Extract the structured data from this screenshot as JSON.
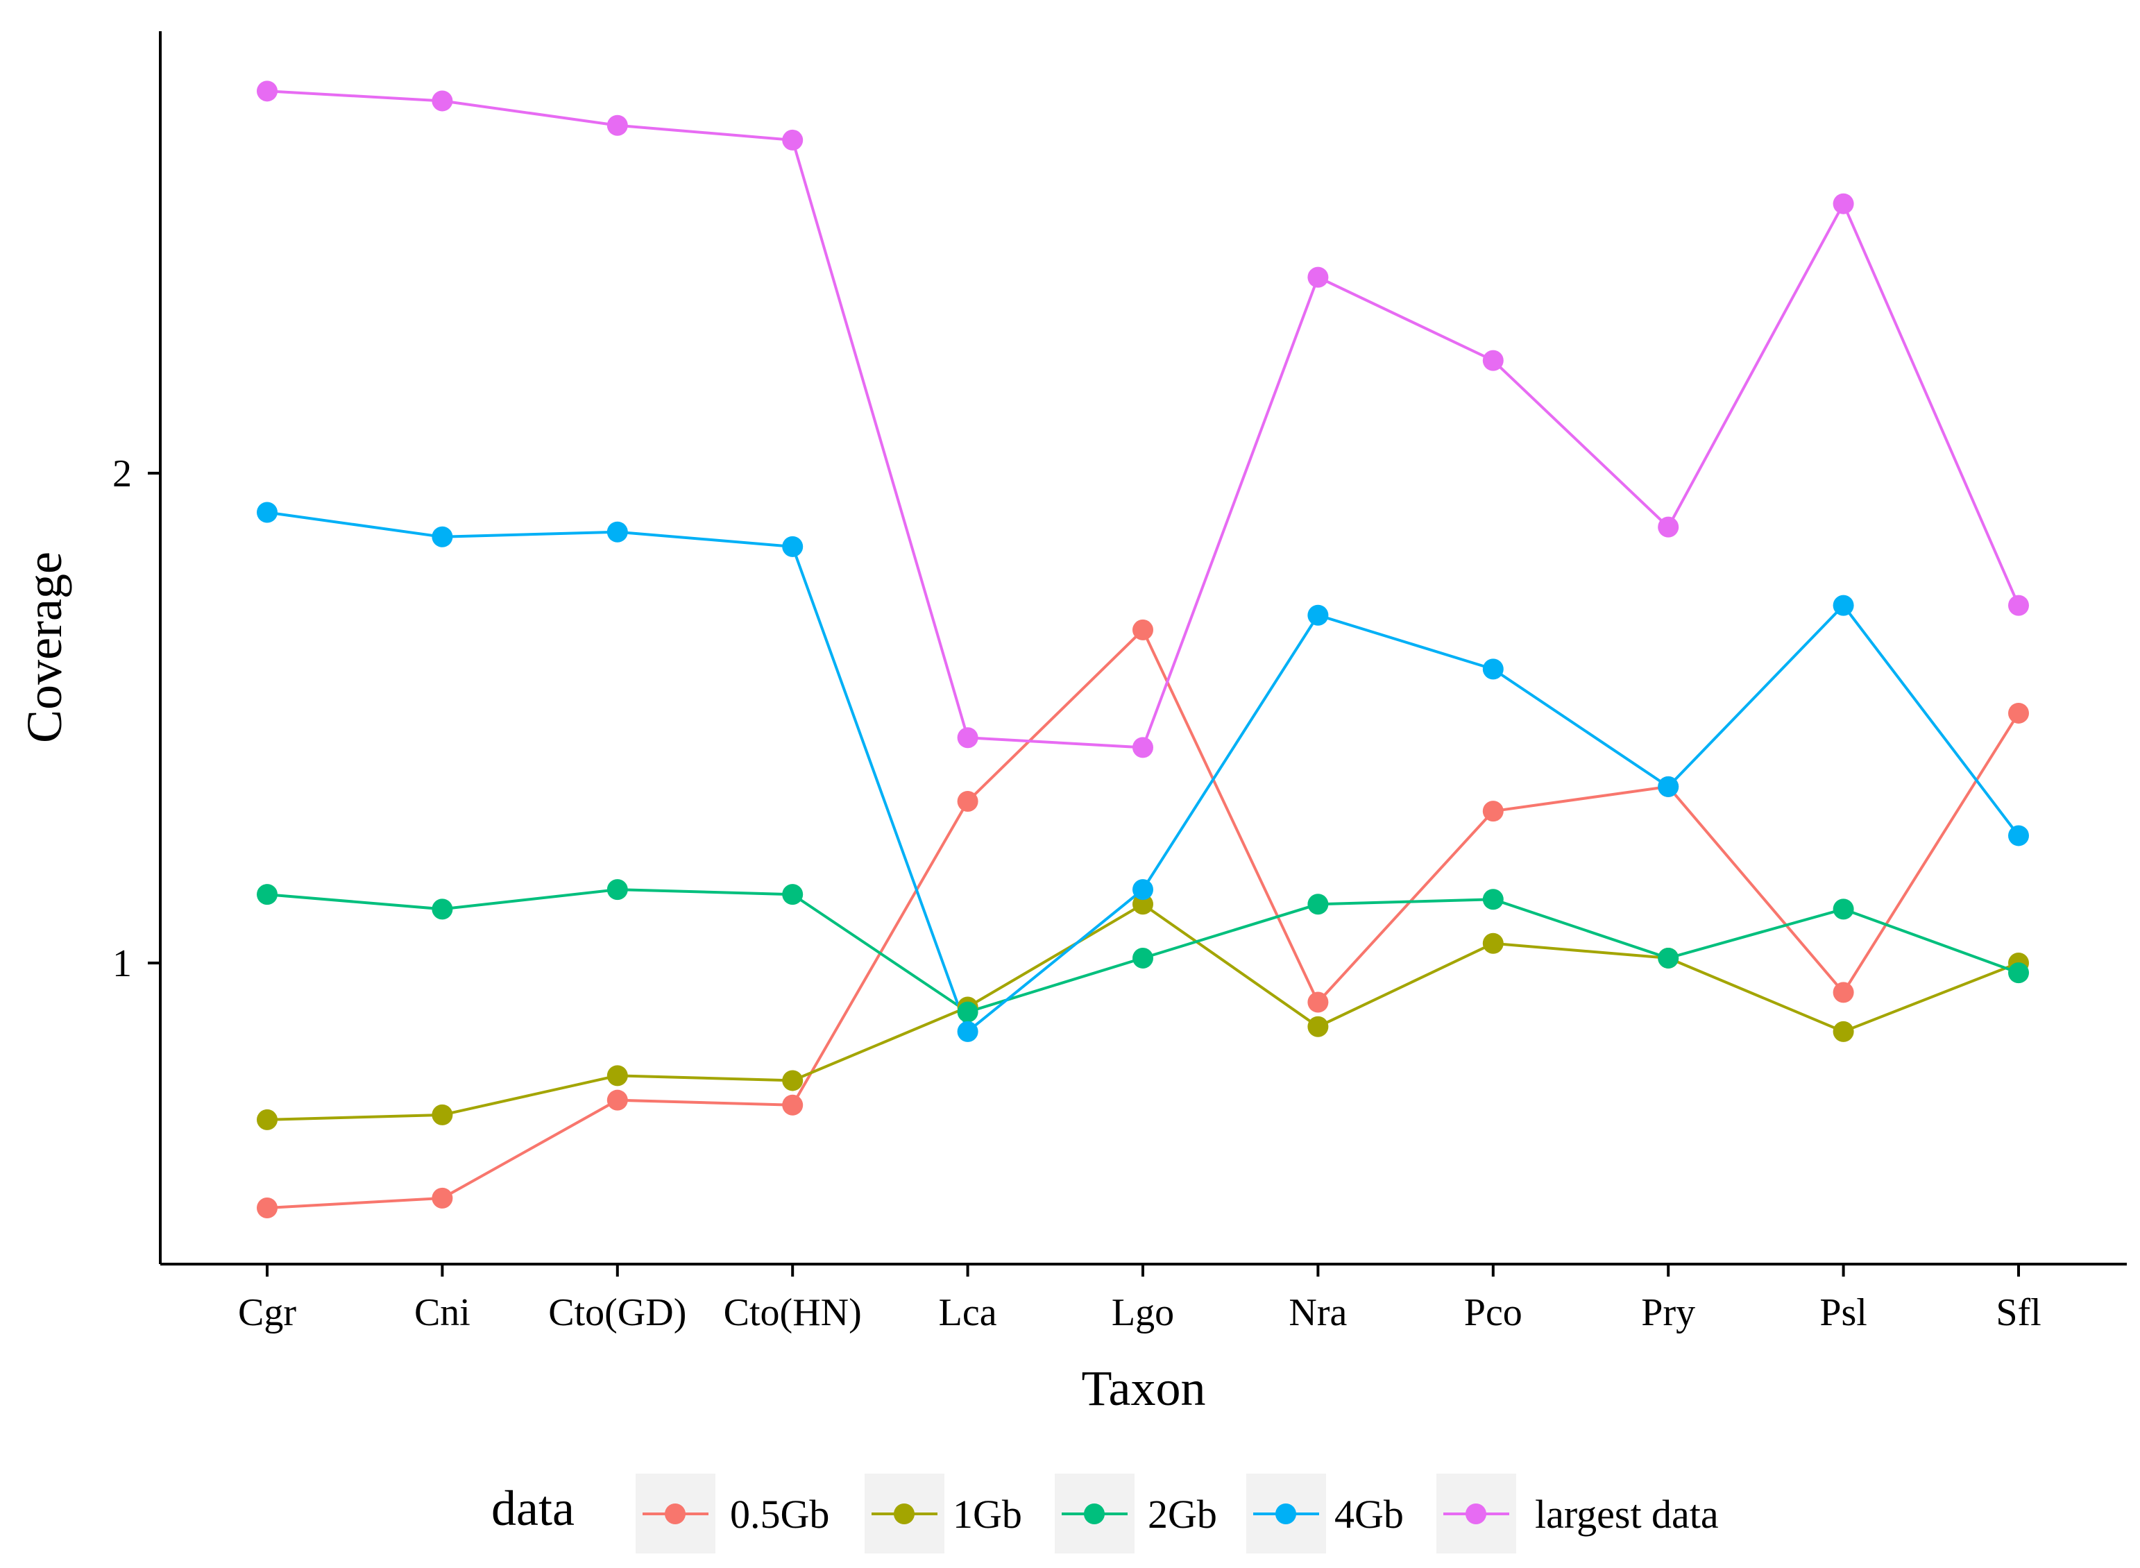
{
  "chart_data": {
    "type": "line",
    "title": "",
    "xlabel": "Taxon",
    "ylabel": "Coverage",
    "categories": [
      "Cgr",
      "Cni",
      "Cto(GD)",
      "Cto(HN)",
      "Lca",
      "Lgo",
      "Nra",
      "Pco",
      "Pry",
      "Psl",
      "Sfl"
    ],
    "yticks": [
      "1",
      "2"
    ],
    "ylim": [
      0.385,
      2.905
    ],
    "grid": false,
    "legend": {
      "title": "data",
      "position": "bottom"
    },
    "series": [
      {
        "name": "0.5Gb",
        "color": "#F8766D",
        "values": [
          0.5,
          0.52,
          0.72,
          0.71,
          1.33,
          1.68,
          0.92,
          1.31,
          1.36,
          0.94,
          1.51
        ]
      },
      {
        "name": "1Gb",
        "color": "#A3A500",
        "values": [
          0.68,
          0.69,
          0.77,
          0.76,
          0.91,
          1.12,
          0.87,
          1.04,
          1.01,
          0.86,
          1.0
        ]
      },
      {
        "name": "2Gb",
        "color": "#00BF7D",
        "values": [
          1.14,
          1.11,
          1.15,
          1.14,
          0.9,
          1.01,
          1.12,
          1.13,
          1.01,
          1.11,
          0.98
        ]
      },
      {
        "name": "4Gb",
        "color": "#00B0F6",
        "values": [
          1.92,
          1.87,
          1.88,
          1.85,
          0.86,
          1.15,
          1.71,
          1.6,
          1.36,
          1.73,
          1.26
        ]
      },
      {
        "name": "largest data",
        "color": "#E76BF3",
        "values": [
          2.78,
          2.76,
          2.71,
          2.68,
          1.46,
          1.44,
          2.4,
          2.23,
          1.89,
          2.55,
          1.73
        ]
      }
    ]
  }
}
